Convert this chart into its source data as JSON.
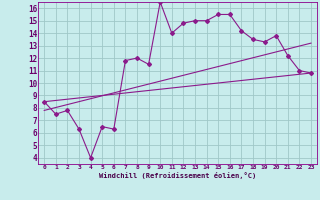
{
  "xlabel": "Windchill (Refroidissement éolien,°C)",
  "bg_color": "#c8ecec",
  "line_color": "#8b1a8b",
  "grid_color": "#a0c8c8",
  "xlim": [
    -0.5,
    23.5
  ],
  "ylim": [
    3.5,
    16.5
  ],
  "x_ticks": [
    0,
    1,
    2,
    3,
    4,
    5,
    6,
    7,
    8,
    9,
    10,
    11,
    12,
    13,
    14,
    15,
    16,
    17,
    18,
    19,
    20,
    21,
    22,
    23
  ],
  "y_ticks": [
    4,
    5,
    6,
    7,
    8,
    9,
    10,
    11,
    12,
    13,
    14,
    15,
    16
  ],
  "series1_x": [
    0,
    1,
    2,
    3,
    4,
    5,
    6,
    7,
    8,
    9,
    10,
    11,
    12,
    13,
    14,
    15,
    16,
    17,
    18,
    19,
    20,
    21,
    22,
    23
  ],
  "series1_y": [
    8.5,
    7.5,
    7.8,
    6.3,
    4.0,
    6.5,
    6.3,
    11.8,
    12.0,
    11.5,
    16.5,
    14.0,
    14.8,
    15.0,
    15.0,
    15.5,
    15.5,
    14.2,
    13.5,
    13.3,
    13.8,
    12.2,
    11.0,
    10.8
  ],
  "series2_x": [
    0,
    23
  ],
  "series2_y": [
    7.8,
    13.2
  ],
  "series3_x": [
    0,
    23
  ],
  "series3_y": [
    8.5,
    10.8
  ]
}
